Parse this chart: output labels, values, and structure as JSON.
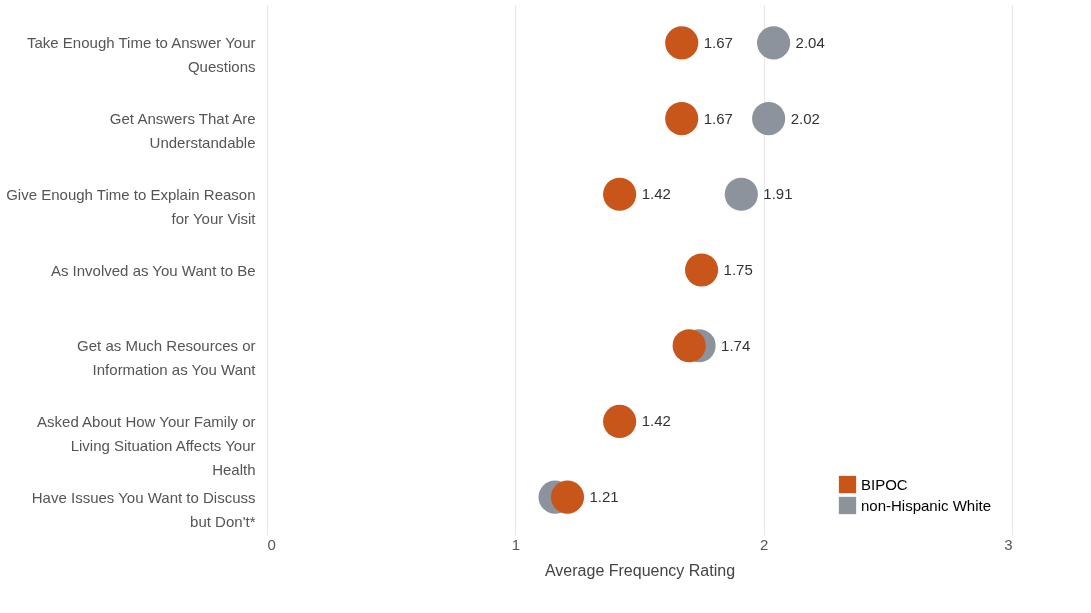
{
  "chart_data": {
    "type": "scatter",
    "orientation": "horizontal",
    "xlabel": "Average Frequency Rating",
    "categories": [
      "Take Enough Time to Answer Your Questions",
      "Get Answers That Are Understandable",
      "Give Enough Time to Explain Reason for Your Visit",
      "As Involved as You Want to Be",
      "Get as Much Resources or Information as You Want",
      "Asked About How Your Family or Living Situation Affects Your Health",
      "Have Issues You Want to Discuss but Don't*"
    ],
    "series": [
      {
        "name": "non-Hispanic White",
        "color": "#8c939c",
        "values": [
          2.04,
          2.02,
          1.91,
          null,
          1.74,
          null,
          1.16
        ],
        "value_labels": [
          "2.04",
          "2.02",
          "1.91",
          null,
          "1.74",
          null,
          null
        ]
      },
      {
        "name": "BIPOC",
        "color": "#c8561b",
        "values": [
          1.67,
          1.67,
          1.42,
          1.75,
          1.7,
          1.42,
          1.21
        ],
        "value_labels": [
          "1.67",
          "1.67",
          "1.42",
          "1.75",
          null,
          "1.42",
          "1.21"
        ]
      }
    ],
    "xlim": [
      0,
      3
    ],
    "xticks": [
      0,
      1,
      2,
      3
    ],
    "grid": "x",
    "legend": "bottom right",
    "marker": "circle"
  }
}
